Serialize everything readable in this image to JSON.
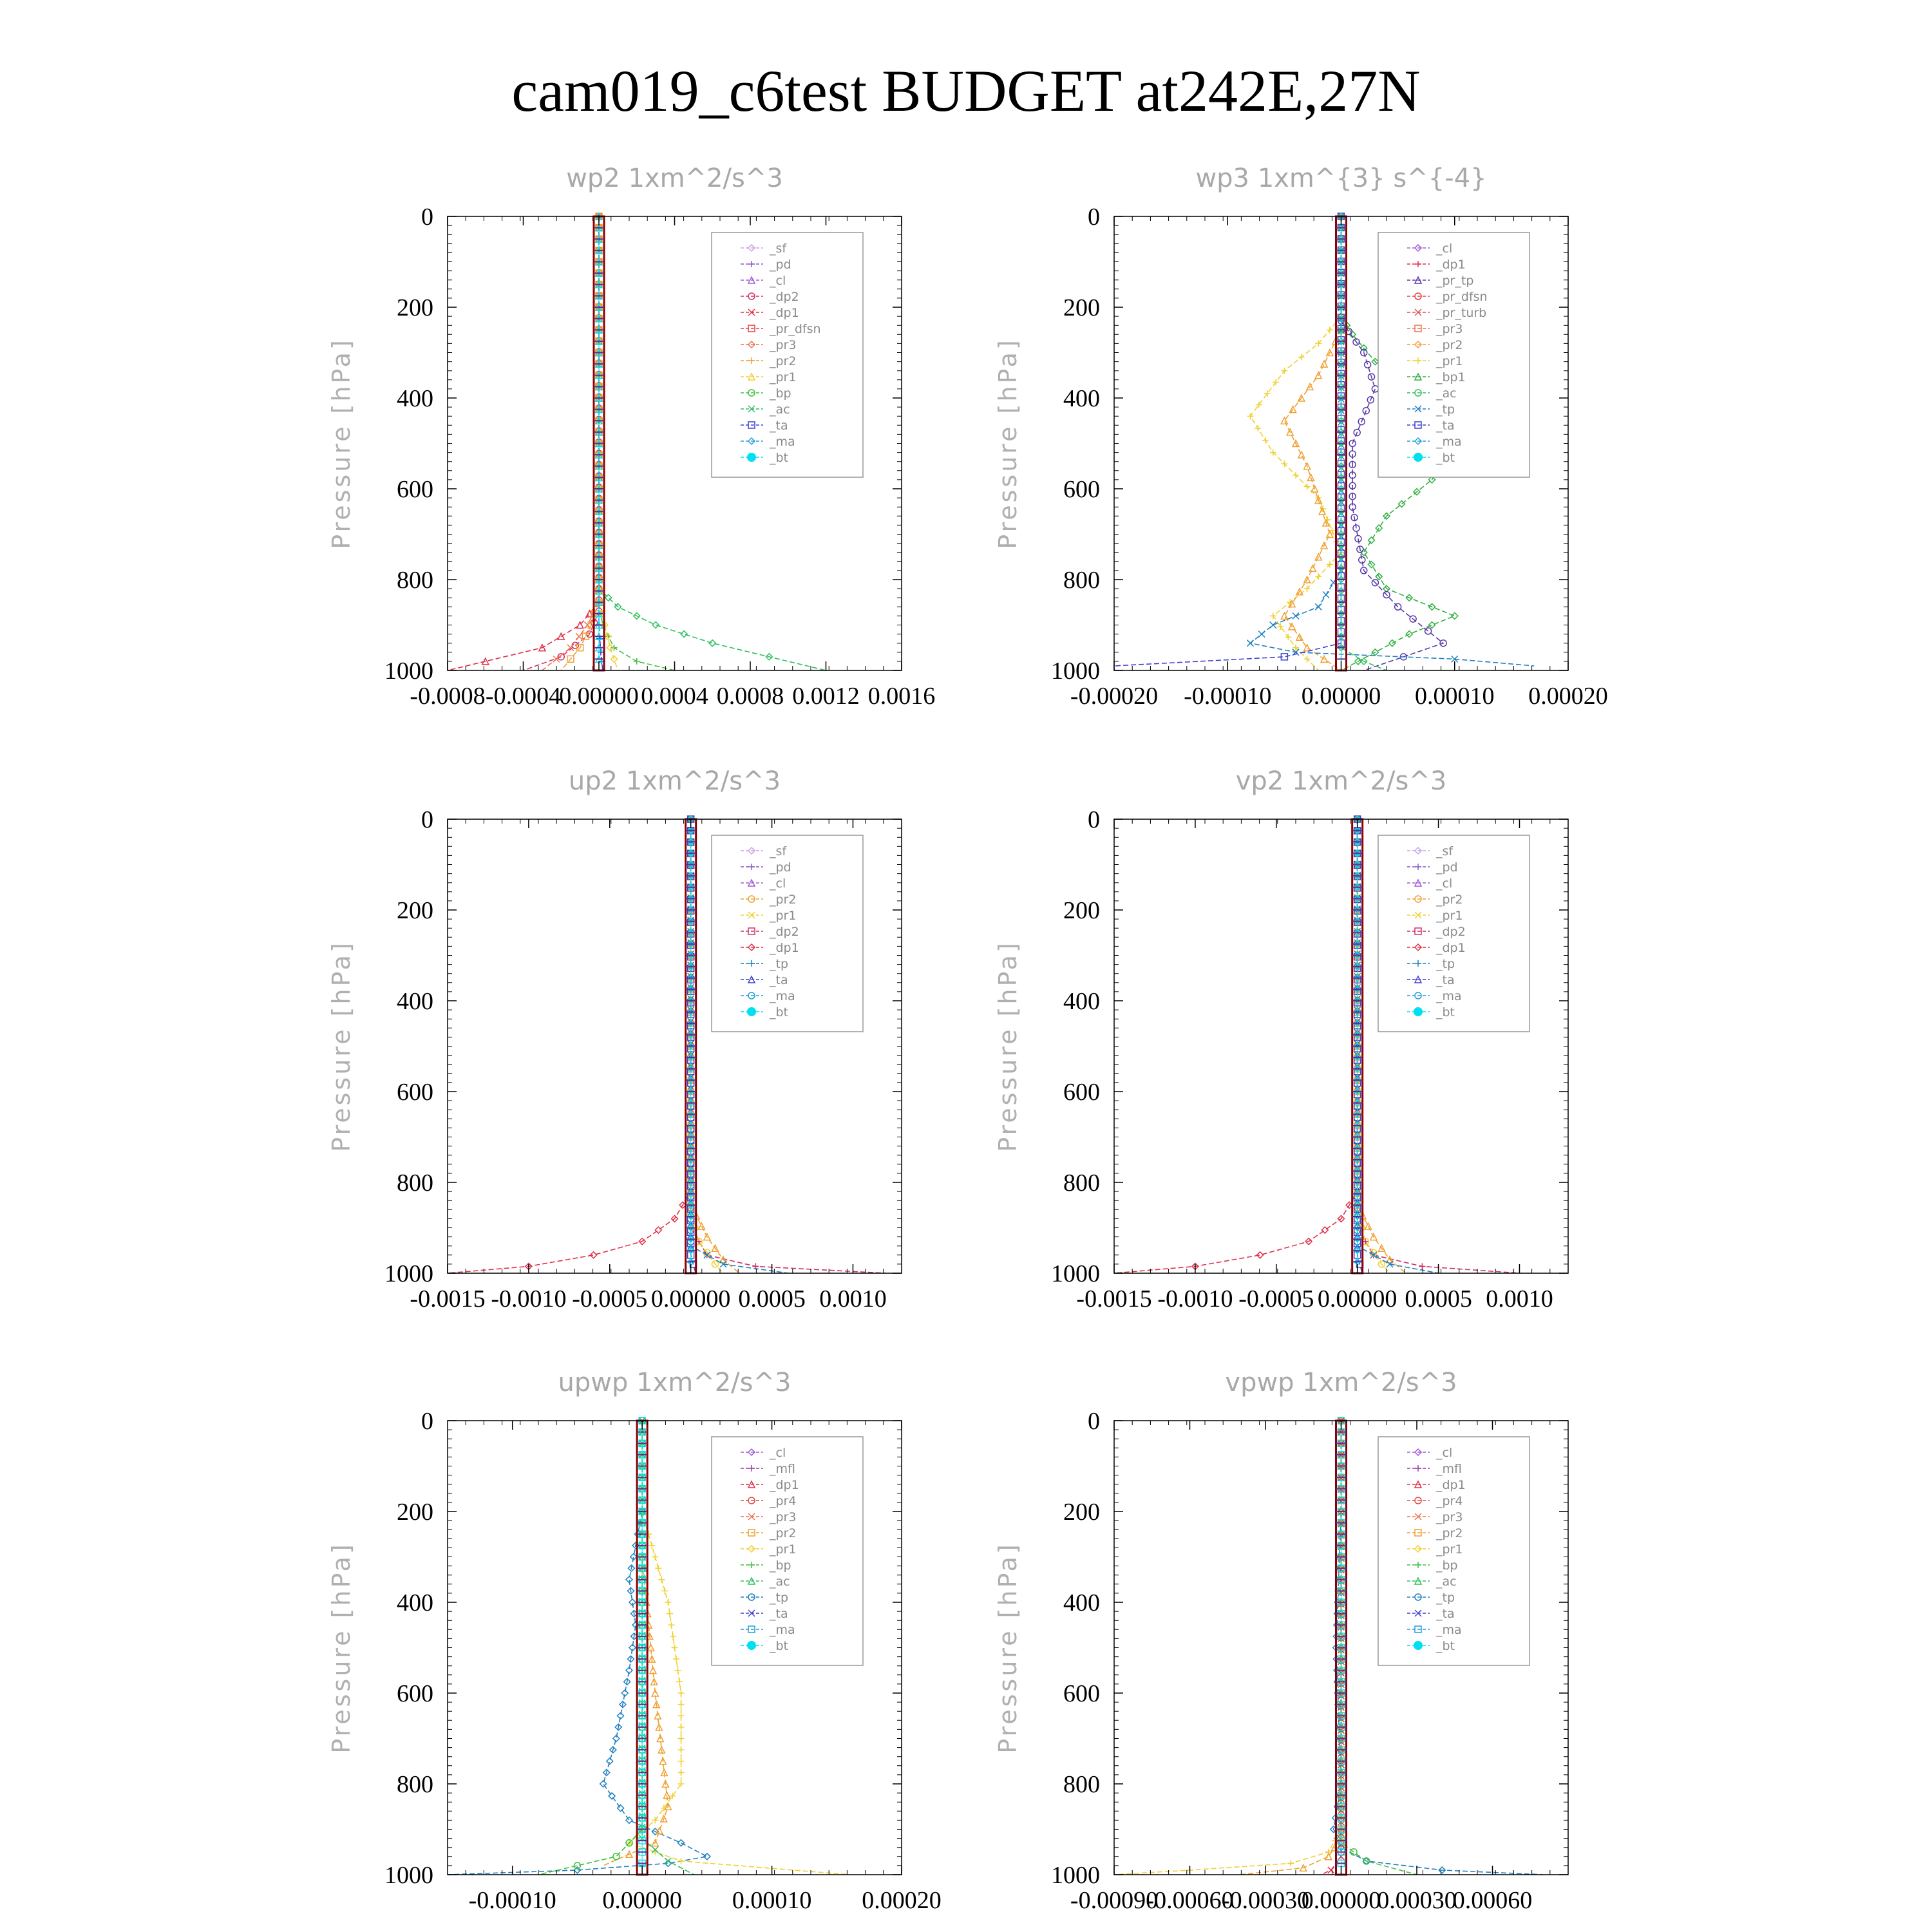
{
  "figure": {
    "title": "cam019_c6test  BUDGET at242E,27N"
  },
  "colors": {
    "_sf": "#c9a2e8",
    "_pd": "#8a5cc9",
    "_cl": "#a35bd8",
    "_mfl": "#9b3fa8",
    "_dp2": "#d0306a",
    "_dp1": "#e0304a",
    "_pr_dfsn": "#e84040",
    "_pr_tp": "#5a3aa8",
    "_pr_turb": "#e05050",
    "_pr4": "#e04848",
    "_pr3": "#f07050",
    "_pr2": "#f0a030",
    "_pr1": "#f0d030",
    "_bp": "#40c040",
    "_bp1": "#30b040",
    "_ac": "#30c060",
    "_tp": "#2080c0",
    "_ta": "#4040d0",
    "_ma": "#20a0d8",
    "_bt": "#00e0f0"
  },
  "chart_data": [
    {
      "id": "wp2",
      "type": "line",
      "title": "wp2   1xm^2/s^3",
      "ylabel": "Pressure [hPa]",
      "ylim": [
        0,
        1000
      ],
      "y_inverted": true,
      "yticks": [
        "0",
        "200",
        "400",
        "600",
        "800",
        "1000"
      ],
      "xlim": [
        -0.0008,
        0.0016
      ],
      "xticks": [
        "-0.0008",
        "-0.0004",
        "0.00000",
        "0.0004",
        "0.0008",
        "0.0012",
        "0.0016"
      ],
      "grid": false,
      "legend_position": "top-right",
      "legend": [
        "_sf",
        "_pd",
        "_cl",
        "_dp2",
        "_dp1",
        "_pr_dfsn",
        "_pr3",
        "_pr2",
        "_pr1",
        "_bp",
        "_ac",
        "_ta",
        "_ma",
        "_bt"
      ],
      "series": [
        {
          "name": "_ac",
          "x": [
            0,
            0,
            0.0001,
            0.0003,
            0.0006,
            0.0009,
            0.0012
          ],
          "y": [
            0,
            820,
            860,
            900,
            940,
            970,
            1000
          ]
        },
        {
          "name": "_bp",
          "x": [
            0,
            0,
            2e-05,
            8e-05,
            0.0002,
            0.0004
          ],
          "y": [
            0,
            850,
            900,
            950,
            980,
            1000
          ]
        },
        {
          "name": "_dp1",
          "x": [
            0,
            0,
            -0.0001,
            -0.0003,
            -0.0006,
            -0.0008
          ],
          "y": [
            0,
            850,
            900,
            950,
            980,
            1000
          ]
        },
        {
          "name": "_dp2",
          "x": [
            0,
            0,
            -5e-05,
            -0.0002,
            -0.0004
          ],
          "y": [
            0,
            870,
            920,
            970,
            1000
          ]
        },
        {
          "name": "_pr3",
          "x": [
            0,
            0,
            -6e-05,
            -0.00015,
            -0.0003
          ],
          "y": [
            0,
            850,
            900,
            950,
            1000
          ]
        },
        {
          "name": "_pr2",
          "x": [
            0,
            0,
            -4e-05,
            -0.0001,
            -0.0002
          ],
          "y": [
            0,
            850,
            900,
            950,
            1000
          ]
        },
        {
          "name": "_pr1",
          "x": [
            0,
            0,
            3e-05,
            6e-05,
            0.0001
          ],
          "y": [
            0,
            850,
            900,
            950,
            1000
          ]
        },
        {
          "name": "_ta",
          "x": [
            0,
            0,
            1e-05,
            2e-05
          ],
          "y": [
            0,
            900,
            960,
            1000
          ]
        },
        {
          "name": "_bt",
          "x": [
            0,
            0
          ],
          "y": [
            0,
            1000
          ]
        }
      ]
    },
    {
      "id": "wp3",
      "type": "line",
      "title": "wp3   1xm^{3} s^{-4}",
      "ylabel": "Pressure [hPa]",
      "ylim": [
        0,
        1000
      ],
      "y_inverted": true,
      "yticks": [
        "0",
        "200",
        "400",
        "600",
        "800",
        "1000"
      ],
      "xlim": [
        -0.0002,
        0.0002
      ],
      "xticks": [
        "-0.00020",
        "-0.00010",
        "0.00000",
        "0.00010",
        "0.00020"
      ],
      "grid": false,
      "legend_position": "top-right",
      "legend": [
        "_cl",
        "_dp1",
        "_pr_tp",
        "_pr_dfsn",
        "_pr_turb",
        "_pr3",
        "_pr2",
        "_pr1",
        "_bp1",
        "_ac",
        "_tp",
        "_ta",
        "_ma",
        "_bt"
      ],
      "series": [
        {
          "name": "_bp1",
          "x": [
            0,
            1e-05,
            3e-05,
            6e-05,
            0.0001,
            8e-05,
            4e-05,
            2e-05,
            4e-05,
            8e-05,
            0.0001,
            6e-05,
            3e-05,
            0
          ],
          "y": [
            220,
            260,
            320,
            400,
            500,
            580,
            660,
            740,
            820,
            860,
            880,
            920,
            960,
            1000
          ]
        },
        {
          "name": "_pr1",
          "x": [
            0,
            -2e-05,
            -5e-05,
            -8e-05,
            -6e-05,
            -2e-05,
            0,
            -3e-05,
            -6e-05,
            -4e-05,
            -2e-05
          ],
          "y": [
            220,
            280,
            340,
            440,
            520,
            620,
            740,
            820,
            880,
            950,
            1000
          ]
        },
        {
          "name": "_pr2",
          "x": [
            0,
            -2e-05,
            -5e-05,
            -3e-05,
            -1e-05,
            -3e-05,
            -5e-05,
            -3e-05,
            0
          ],
          "y": [
            250,
            350,
            450,
            550,
            700,
            800,
            880,
            950,
            1000
          ]
        },
        {
          "name": "_pr_tp",
          "x": [
            0,
            2e-05,
            3e-05,
            1e-05,
            1e-05,
            2e-05,
            5e-05,
            9e-05,
            2e-05
          ],
          "y": [
            230,
            300,
            380,
            500,
            640,
            780,
            860,
            940,
            1000
          ]
        },
        {
          "name": "_tp",
          "x": [
            0,
            0,
            -2e-05,
            -6e-05,
            -8e-05,
            -4e-05,
            0.0001,
            0.00017
          ],
          "y": [
            0,
            780,
            860,
            900,
            940,
            960,
            975,
            990
          ]
        },
        {
          "name": "_ta",
          "x": [
            0,
            0,
            -5e-05,
            -0.0002
          ],
          "y": [
            0,
            940,
            970,
            990
          ]
        },
        {
          "name": "_ac",
          "x": [
            0,
            0,
            2e-05,
            4e-05
          ],
          "y": [
            0,
            950,
            980,
            1000
          ]
        },
        {
          "name": "_bt",
          "x": [
            0,
            0
          ],
          "y": [
            0,
            1000
          ]
        }
      ]
    },
    {
      "id": "up2",
      "type": "line",
      "title": "up2   1xm^2/s^3",
      "ylabel": "Pressure [hPa]",
      "ylim": [
        0,
        1000
      ],
      "y_inverted": true,
      "yticks": [
        "0",
        "200",
        "400",
        "600",
        "800",
        "1000"
      ],
      "xlim": [
        -0.0015,
        0.0013
      ],
      "xticks": [
        "-0.0015",
        "-0.0010",
        "-0.0005",
        "0.00000",
        "0.0005",
        "0.0010"
      ],
      "grid": false,
      "legend_position": "top-right",
      "legend": [
        "_sf",
        "_pd",
        "_cl",
        "_pr2",
        "_pr1",
        "_dp2",
        "_dp1",
        "_tp",
        "_ta",
        "_ma",
        "_bt"
      ],
      "series": [
        {
          "name": "_dp1",
          "x": [
            0,
            0,
            -0.0001,
            -0.0003,
            -0.0006,
            -0.001,
            -0.0015
          ],
          "y": [
            0,
            820,
            880,
            930,
            960,
            985,
            1000
          ]
        },
        {
          "name": "_dp2",
          "x": [
            0,
            0,
            0.0001,
            0.0004,
            0.0012
          ],
          "y": [
            0,
            900,
            960,
            985,
            1000
          ]
        },
        {
          "name": "_pr2",
          "x": [
            0,
            0,
            0.0001,
            0.0002,
            0.0003
          ],
          "y": [
            0,
            850,
            920,
            970,
            1000
          ]
        },
        {
          "name": "_pr1",
          "x": [
            0,
            0,
            5e-05,
            0.00015,
            0.0002
          ],
          "y": [
            0,
            870,
            930,
            980,
            1000
          ]
        },
        {
          "name": "_tp",
          "x": [
            0,
            0,
            0.0002,
            0.0006
          ],
          "y": [
            0,
            940,
            980,
            1000
          ]
        },
        {
          "name": "_ta",
          "x": [
            0,
            0,
            3e-05
          ],
          "y": [
            0,
            960,
            1000
          ]
        },
        {
          "name": "_bt",
          "x": [
            0,
            0
          ],
          "y": [
            0,
            1000
          ]
        }
      ]
    },
    {
      "id": "vp2",
      "type": "line",
      "title": "vp2   1xm^2/s^3",
      "ylabel": "Pressure [hPa]",
      "ylim": [
        0,
        1000
      ],
      "y_inverted": true,
      "yticks": [
        "0",
        "200",
        "400",
        "600",
        "800",
        "1000"
      ],
      "xlim": [
        -0.0015,
        0.0013
      ],
      "xticks": [
        "-0.0015",
        "-0.0010",
        "-0.0005",
        "0.00000",
        "0.0005",
        "0.0010"
      ],
      "grid": false,
      "legend_position": "top-right",
      "legend": [
        "_sf",
        "_pd",
        "_cl",
        "_pr2",
        "_pr1",
        "_dp2",
        "_dp1",
        "_tp",
        "_ta",
        "_ma",
        "_bt"
      ],
      "series": [
        {
          "name": "_dp1",
          "x": [
            0,
            0,
            -0.0001,
            -0.0003,
            -0.0006,
            -0.001,
            -0.0015
          ],
          "y": [
            0,
            820,
            880,
            930,
            960,
            985,
            1000
          ]
        },
        {
          "name": "_dp2",
          "x": [
            0,
            0,
            0.0001,
            0.0004,
            0.001
          ],
          "y": [
            0,
            900,
            960,
            985,
            1000
          ]
        },
        {
          "name": "_pr2",
          "x": [
            0,
            0,
            0.0001,
            0.0002,
            0.0003
          ],
          "y": [
            0,
            850,
            920,
            970,
            1000
          ]
        },
        {
          "name": "_pr1",
          "x": [
            0,
            0,
            5e-05,
            0.00015,
            0.0002
          ],
          "y": [
            0,
            870,
            930,
            980,
            1000
          ]
        },
        {
          "name": "_tp",
          "x": [
            0,
            0,
            0.0002,
            0.0005
          ],
          "y": [
            0,
            940,
            980,
            1000
          ]
        },
        {
          "name": "_ta",
          "x": [
            0,
            0,
            3e-05
          ],
          "y": [
            0,
            960,
            1000
          ]
        },
        {
          "name": "_bt",
          "x": [
            0,
            0
          ],
          "y": [
            0,
            1000
          ]
        }
      ]
    },
    {
      "id": "upwp",
      "type": "line",
      "title": "upwp   1xm^2/s^3",
      "ylabel": "Pressure [hPa]",
      "ylim": [
        0,
        1000
      ],
      "y_inverted": true,
      "yticks": [
        "0",
        "200",
        "400",
        "600",
        "800",
        "1000"
      ],
      "xlim": [
        -0.00015,
        0.0002
      ],
      "xticks": [
        "-0.00010",
        "0.00000",
        "0.00010",
        "0.00020"
      ],
      "grid": false,
      "legend_position": "top-right",
      "legend": [
        "_cl",
        "_mfl",
        "_dp1",
        "_pr4",
        "_pr3",
        "_pr2",
        "_pr1",
        "_bp",
        "_ac",
        "_tp",
        "_ta",
        "_ma",
        "_bt"
      ],
      "series": [
        {
          "name": "_tp",
          "x": [
            0,
            -1e-05,
            -5e-06,
            -1e-05,
            -2e-05,
            -3e-05,
            -1e-05,
            3e-05,
            5e-05,
            2e-05,
            -5e-05,
            -0.00015
          ],
          "y": [
            200,
            350,
            450,
            550,
            700,
            800,
            880,
            930,
            960,
            975,
            990,
            1000
          ]
        },
        {
          "name": "_pr1",
          "x": [
            0,
            2e-05,
            3e-05,
            3e-05,
            1e-05,
            -1e-05,
            3e-05,
            0.00016
          ],
          "y": [
            200,
            400,
            600,
            800,
            880,
            930,
            970,
            1000
          ]
        },
        {
          "name": "_pr2",
          "x": [
            0,
            1e-05,
            2e-05,
            1e-05,
            -3e-05
          ],
          "y": [
            300,
            600,
            850,
            930,
            980
          ]
        },
        {
          "name": "_bp",
          "x": [
            0,
            0,
            -2e-05,
            -8e-05
          ],
          "y": [
            0,
            900,
            960,
            1000
          ]
        },
        {
          "name": "_ac",
          "x": [
            0,
            0,
            2e-05,
            4e-05
          ],
          "y": [
            0,
            920,
            970,
            1000
          ]
        },
        {
          "name": "_bt",
          "x": [
            0,
            0
          ],
          "y": [
            0,
            1000
          ]
        }
      ]
    },
    {
      "id": "vpwp",
      "type": "line",
      "title": "vpwp   1xm^2/s^3",
      "ylabel": "Pressure [hPa]",
      "ylim": [
        0,
        1000
      ],
      "y_inverted": true,
      "yticks": [
        "0",
        "200",
        "400",
        "600",
        "800",
        "1000"
      ],
      "xlim": [
        -0.0009,
        0.0009
      ],
      "xticks": [
        "-0.00090",
        "-0.00060",
        "-0.00030",
        "0.00000",
        "0.00030",
        "0.00060"
      ],
      "grid": false,
      "legend_position": "top-right",
      "legend": [
        "_cl",
        "_mfl",
        "_dp1",
        "_pr4",
        "_pr3",
        "_pr2",
        "_pr1",
        "_bp",
        "_ac",
        "_tp",
        "_ta",
        "_ma",
        "_bt"
      ],
      "series": [
        {
          "name": "_tp",
          "x": [
            0,
            -2e-05,
            0,
            -3e-05,
            0,
            0.0001,
            0.0004,
            0.0008
          ],
          "y": [
            200,
            500,
            800,
            900,
            940,
            970,
            990,
            1000
          ]
        },
        {
          "name": "_pr1",
          "x": [
            0,
            0,
            -5e-05,
            -0.0002,
            -0.0006,
            -0.0009
          ],
          "y": [
            0,
            900,
            950,
            975,
            990,
            1000
          ]
        },
        {
          "name": "_pr2",
          "x": [
            0,
            0,
            -5e-05,
            -0.00015,
            -0.0004
          ],
          "y": [
            0,
            920,
            960,
            985,
            1000
          ]
        },
        {
          "name": "_bp",
          "x": [
            0,
            0,
            0.0001,
            0.0003
          ],
          "y": [
            0,
            930,
            970,
            1000
          ]
        },
        {
          "name": "_dp1",
          "x": [
            0,
            0,
            -4e-05,
            -8e-05
          ],
          "y": [
            0,
            960,
            990,
            1000
          ]
        },
        {
          "name": "_bt",
          "x": [
            0,
            0
          ],
          "y": [
            0,
            1000
          ]
        }
      ]
    }
  ]
}
